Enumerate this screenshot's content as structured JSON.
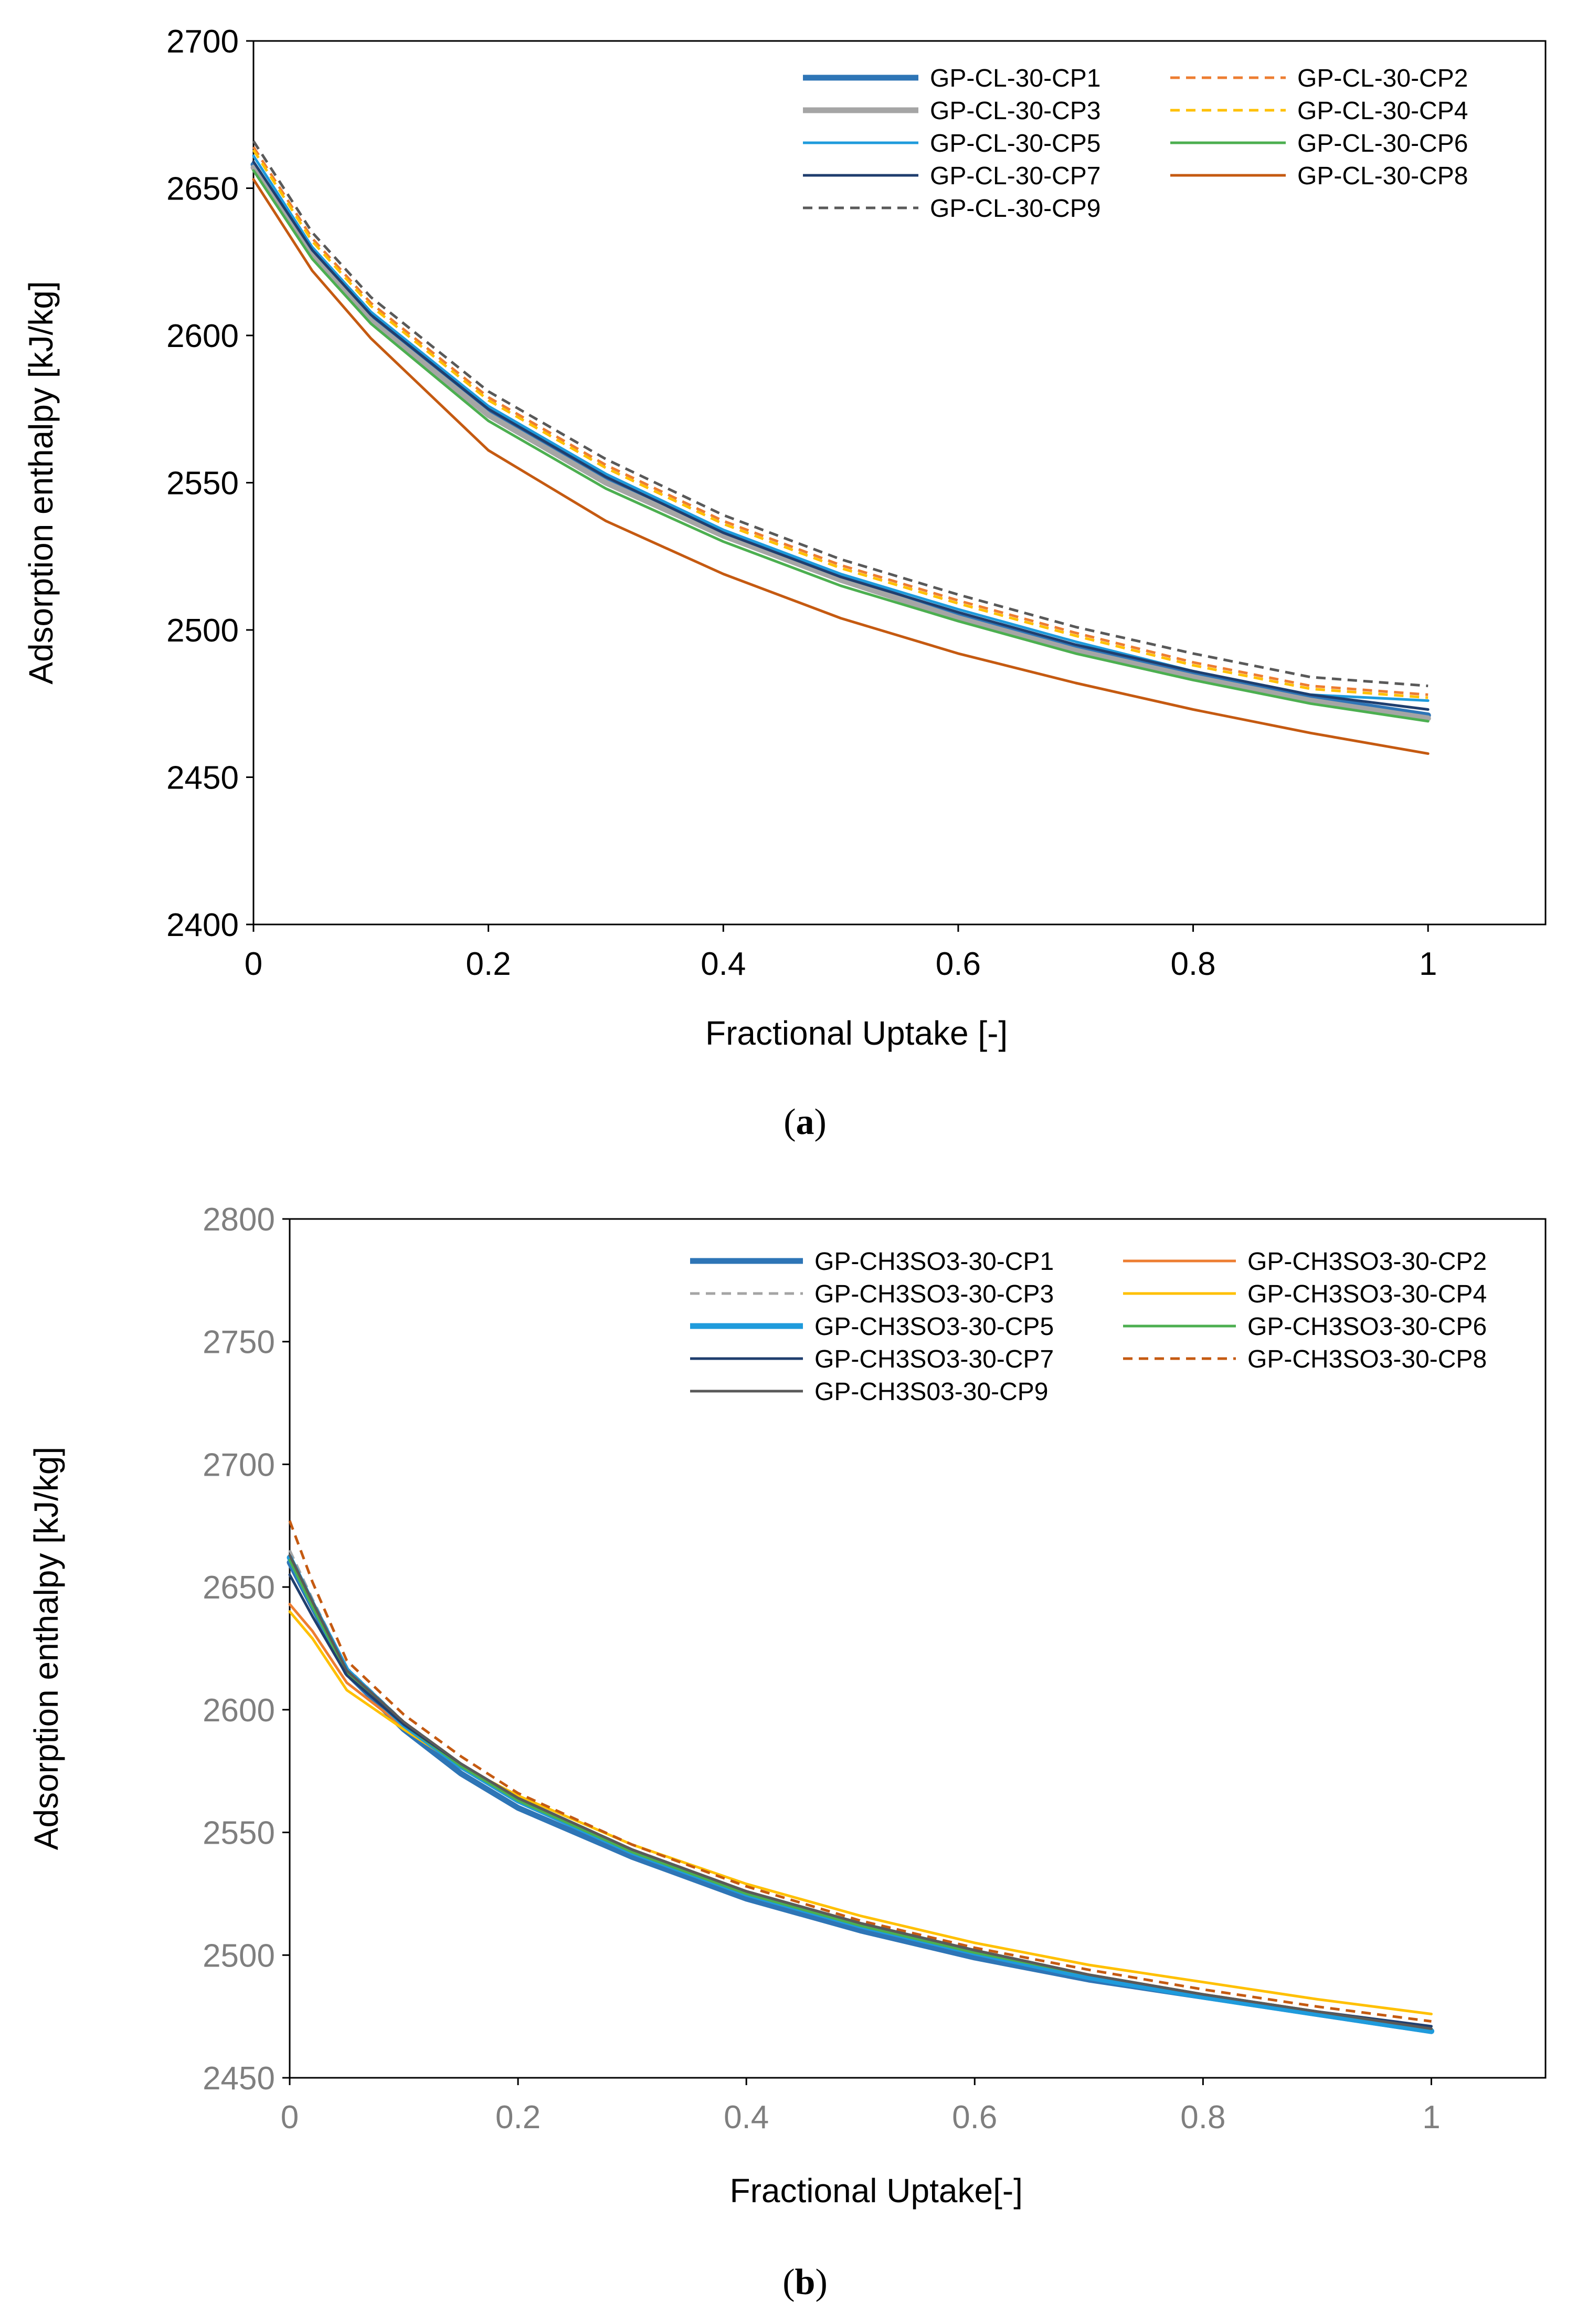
{
  "chart_data": [
    {
      "type": "line",
      "panel_label": "(a)",
      "panel_letter": "a",
      "xlabel": "Fractional Uptake [-]",
      "ylabel": "Adsorption enthalpy [kJ/kg]",
      "xlim": [
        0,
        1.1
      ],
      "ylim": [
        2400,
        2700
      ],
      "x_ticks": [
        0,
        0.2,
        0.4,
        0.6,
        0.8,
        1
      ],
      "x_tick_labels": [
        "0",
        "0.2",
        "0.4",
        "0.6",
        "0.8",
        "1"
      ],
      "y_ticks": [
        2400,
        2450,
        2500,
        2550,
        2600,
        2650,
        2700
      ],
      "y_tick_labels": [
        "2400",
        "2450",
        "2500",
        "2550",
        "2600",
        "2650",
        "2700"
      ],
      "tick_color": "#000000",
      "legend_position": "top-right",
      "x": [
        0,
        0.05,
        0.1,
        0.2,
        0.3,
        0.4,
        0.5,
        0.6,
        0.7,
        0.8,
        0.9,
        1.0
      ],
      "series": [
        {
          "name": "GP-CL-30-CP1",
          "color": "#2E75B6",
          "dash": "solid",
          "width": "thick",
          "values": [
            2658,
            2628,
            2606,
            2574,
            2551,
            2533,
            2518,
            2505,
            2494,
            2485,
            2477,
            2471
          ]
        },
        {
          "name": "GP-CL-30-CP2",
          "color": "#ED7D31",
          "dash": "dashed",
          "width": "normal",
          "values": [
            2664,
            2633,
            2611,
            2579,
            2556,
            2537,
            2522,
            2510,
            2499,
            2489,
            2481,
            2478
          ]
        },
        {
          "name": "GP-CL-30-CP3",
          "color": "#A5A5A5",
          "dash": "solid",
          "width": "thick",
          "values": [
            2657,
            2627,
            2605,
            2573,
            2550,
            2532,
            2517,
            2504,
            2493,
            2484,
            2476,
            2470
          ]
        },
        {
          "name": "GP-CL-30-CP4",
          "color": "#FFC000",
          "dash": "dashed",
          "width": "normal",
          "values": [
            2663,
            2632,
            2610,
            2578,
            2555,
            2536,
            2521,
            2509,
            2498,
            2488,
            2480,
            2477
          ]
        },
        {
          "name": "GP-CL-30-CP5",
          "color": "#1F9BDC",
          "dash": "solid",
          "width": "normal",
          "values": [
            2661,
            2630,
            2608,
            2576,
            2553,
            2534,
            2519,
            2507,
            2496,
            2486,
            2478,
            2476
          ]
        },
        {
          "name": "GP-CL-30-CP6",
          "color": "#4CAF50",
          "dash": "solid",
          "width": "normal",
          "values": [
            2656,
            2626,
            2604,
            2571,
            2548,
            2530,
            2515,
            2503,
            2492,
            2483,
            2475,
            2469
          ]
        },
        {
          "name": "GP-CL-30-CP7",
          "color": "#1F3E6E",
          "dash": "solid",
          "width": "normal",
          "values": [
            2659,
            2629,
            2607,
            2575,
            2552,
            2533,
            2518,
            2506,
            2495,
            2486,
            2478,
            2473
          ]
        },
        {
          "name": "GP-CL-30-CP8",
          "color": "#C55A11",
          "dash": "solid",
          "width": "normal",
          "values": [
            2653,
            2622,
            2599,
            2561,
            2537,
            2519,
            2504,
            2492,
            2482,
            2473,
            2465,
            2458
          ]
        },
        {
          "name": "GP-CL-30-CP9",
          "color": "#595959",
          "dash": "dashed",
          "width": "normal",
          "values": [
            2666,
            2635,
            2613,
            2581,
            2558,
            2539,
            2524,
            2512,
            2501,
            2492,
            2484,
            2481
          ]
        }
      ]
    },
    {
      "type": "line",
      "panel_label": "(b)",
      "panel_letter": "b",
      "xlabel": "Fractional Uptake[-]",
      "ylabel": "Adsorption enthalpy [kJ/kg]",
      "xlim": [
        0,
        1.1
      ],
      "ylim": [
        2450,
        2800
      ],
      "x_ticks": [
        0,
        0.2,
        0.4,
        0.6,
        0.8,
        1
      ],
      "x_tick_labels": [
        "0",
        "0.2",
        "0.4",
        "0.6",
        "0.8",
        "1"
      ],
      "y_ticks": [
        2450,
        2500,
        2550,
        2600,
        2650,
        2700,
        2750,
        2800
      ],
      "y_tick_labels": [
        "2450",
        "2500",
        "2550",
        "2600",
        "2650",
        "2700",
        "2750",
        "2800"
      ],
      "tick_color": "#7F7F7F",
      "legend_position": "top-right",
      "x": [
        0,
        0.02,
        0.05,
        0.1,
        0.15,
        0.2,
        0.3,
        0.4,
        0.5,
        0.6,
        0.7,
        0.8,
        0.9,
        1.0
      ],
      "series": [
        {
          "name": "GP-CH3SO3-30-CP1",
          "color": "#2E75B6",
          "dash": "solid",
          "width": "thick",
          "values": [
            2660,
            2642,
            2615,
            2592,
            2574,
            2560,
            2540,
            2523,
            2510,
            2499,
            2490,
            2483,
            2476,
            2469
          ]
        },
        {
          "name": "GP-CH3SO3-30-CP2",
          "color": "#ED7D31",
          "dash": "solid",
          "width": "normal",
          "values": [
            2643,
            2632,
            2611,
            2593,
            2577,
            2564,
            2542,
            2526,
            2512,
            2501,
            2492,
            2484,
            2477,
            2470
          ]
        },
        {
          "name": "GP-CH3SO3-30-CP3",
          "color": "#A5A5A5",
          "dash": "dashed",
          "width": "normal",
          "values": [
            2665,
            2645,
            2617,
            2595,
            2578,
            2564,
            2543,
            2526,
            2513,
            2502,
            2492,
            2484,
            2477,
            2470
          ]
        },
        {
          "name": "GP-CH3SO3-30-CP4",
          "color": "#FFC000",
          "dash": "solid",
          "width": "normal",
          "values": [
            2640,
            2629,
            2608,
            2592,
            2577,
            2565,
            2545,
            2529,
            2516,
            2505,
            2496,
            2489,
            2482,
            2476
          ]
        },
        {
          "name": "GP-CH3SO3-30-CP5",
          "color": "#1F9BDC",
          "dash": "solid",
          "width": "thick",
          "values": [
            2662,
            2643,
            2616,
            2594,
            2577,
            2563,
            2542,
            2525,
            2512,
            2501,
            2491,
            2483,
            2476,
            2469
          ]
        },
        {
          "name": "GP-CH3SO3-30-CP6",
          "color": "#4CAF50",
          "dash": "solid",
          "width": "normal",
          "values": [
            2661,
            2642,
            2615,
            2594,
            2577,
            2563,
            2542,
            2525,
            2512,
            2501,
            2492,
            2484,
            2477,
            2470
          ]
        },
        {
          "name": "GP-CH3SO3-30-CP7",
          "color": "#1F3E6E",
          "dash": "solid",
          "width": "normal",
          "values": [
            2655,
            2638,
            2614,
            2594,
            2578,
            2564,
            2543,
            2526,
            2513,
            2502,
            2492,
            2484,
            2477,
            2471
          ]
        },
        {
          "name": "GP-CH3SO3-30-CP8",
          "color": "#C55A11",
          "dash": "dashed",
          "width": "normal",
          "values": [
            2677,
            2652,
            2620,
            2598,
            2581,
            2566,
            2545,
            2528,
            2514,
            2503,
            2494,
            2486,
            2479,
            2473
          ]
        },
        {
          "name": "GP-CH3S03-30-CP9",
          "color": "#595959",
          "dash": "solid",
          "width": "normal",
          "values": [
            2663,
            2644,
            2616,
            2595,
            2578,
            2564,
            2543,
            2526,
            2513,
            2502,
            2492,
            2484,
            2477,
            2470
          ]
        }
      ]
    }
  ]
}
